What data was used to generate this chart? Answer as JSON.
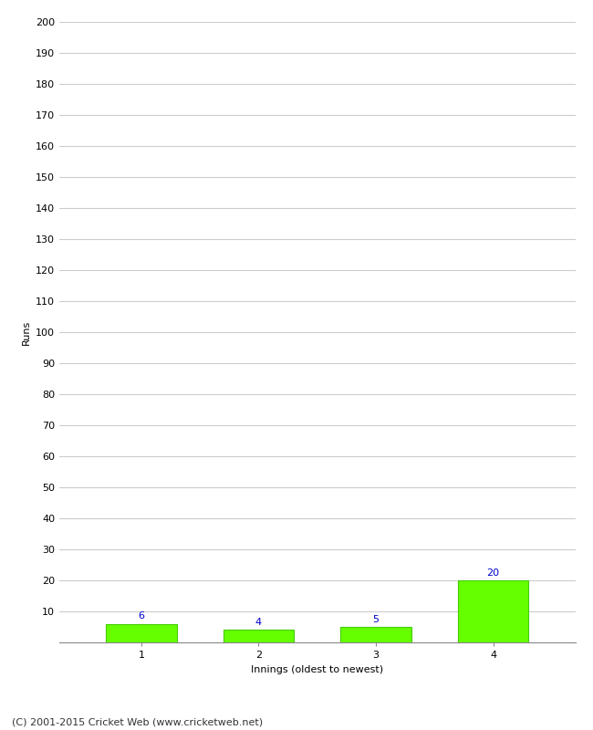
{
  "categories": [
    "1",
    "2",
    "3",
    "4"
  ],
  "values": [
    6,
    4,
    5,
    20
  ],
  "bar_color": "#66ff00",
  "bar_edge_color": "#44cc00",
  "value_label_color": "#0000cc",
  "xlabel": "Innings (oldest to newest)",
  "ylabel": "Runs",
  "ylim": [
    0,
    200
  ],
  "yticks": [
    0,
    10,
    20,
    30,
    40,
    50,
    60,
    70,
    80,
    90,
    100,
    110,
    120,
    130,
    140,
    150,
    160,
    170,
    180,
    190,
    200
  ],
  "footer": "(C) 2001-2015 Cricket Web (www.cricketweb.net)",
  "background_color": "#ffffff",
  "grid_color": "#cccccc",
  "value_fontsize": 8,
  "label_fontsize": 8,
  "footer_fontsize": 8,
  "tick_fontsize": 8
}
